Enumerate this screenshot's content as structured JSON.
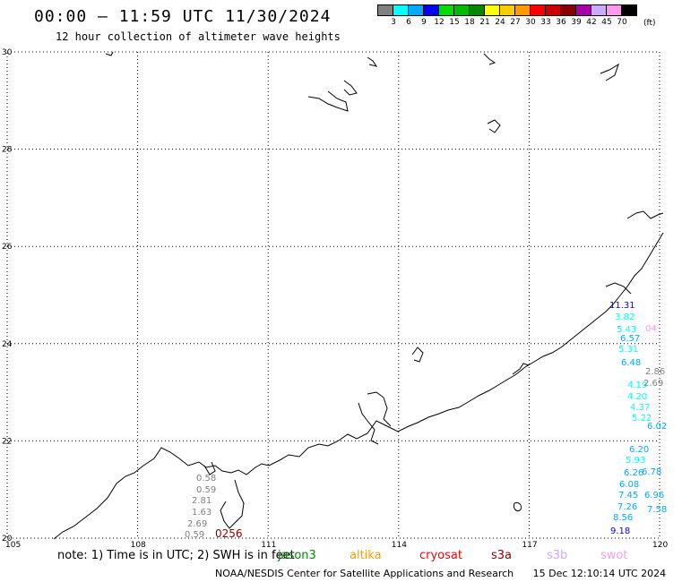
{
  "header": {
    "title": "00:00 – 11:59 UTC 11/30/2024",
    "subtitle": "12 hour collection of altimeter wave heights"
  },
  "legend": {
    "unit": "(ft)",
    "labels": [
      "3",
      "6",
      "9",
      "12",
      "15",
      "18",
      "21",
      "24",
      "27",
      "30",
      "33",
      "36",
      "39",
      "42",
      "45",
      "70"
    ],
    "colors": [
      "#808080",
      "#00ffff",
      "#00aaff",
      "#0000ff",
      "#00dd00",
      "#00bb00",
      "#008800",
      "#ffff00",
      "#ffcc00",
      "#ff9900",
      "#ff0000",
      "#cc0000",
      "#880000",
      "#aa00aa",
      "#ccaaff",
      "#ff99ee",
      "#000000"
    ]
  },
  "map": {
    "lat_labels": [
      "30",
      "28",
      "26",
      "24",
      "22",
      "20"
    ],
    "lon_labels": [
      "105",
      "108",
      "111",
      "114",
      "117",
      "120"
    ],
    "lon_range": [
      105,
      120
    ],
    "lat_range": [
      20,
      30
    ],
    "annotations": [
      {
        "text": "0.58",
        "color": "#808080"
      },
      {
        "text": "0.59",
        "color": "#808080"
      },
      {
        "text": "2.81",
        "color": "#808080"
      },
      {
        "text": "1.63",
        "color": "#808080"
      },
      {
        "text": "2.69",
        "color": "#808080"
      },
      {
        "text": "0.59",
        "color": "#808080"
      },
      {
        "text": "0256",
        "color": "#880000"
      },
      {
        "text": "11.31",
        "color": "#0000ff"
      },
      {
        "text": "3.82",
        "color": "#00ffff"
      },
      {
        "text": "5.43",
        "color": "#00ffff"
      },
      {
        "text": "6.57",
        "color": "#00aaff"
      },
      {
        "text": "5.31",
        "color": "#00ffff"
      },
      {
        "text": "6.48",
        "color": "#00aaff"
      },
      {
        "text": "4.19",
        "color": "#00ffff"
      },
      {
        "text": "4.20",
        "color": "#00ffff"
      },
      {
        "text": "4.37",
        "color": "#00ffff"
      },
      {
        "text": "5.22",
        "color": "#00ffff"
      },
      {
        "text": "6.20",
        "color": "#00aaff"
      },
      {
        "text": "5.93",
        "color": "#00ffff"
      },
      {
        "text": "6.26",
        "color": "#00aaff"
      },
      {
        "text": "6.08",
        "color": "#00aaff"
      },
      {
        "text": "7.45",
        "color": "#00aaff"
      },
      {
        "text": "7.26",
        "color": "#00aaff"
      },
      {
        "text": "8.56",
        "color": "#00aaff"
      },
      {
        "text": "9.18",
        "color": "#0000ff"
      },
      {
        "text": "2.86",
        "color": "#808080"
      },
      {
        "text": "2.69",
        "color": "#808080"
      },
      {
        "text": "6.02",
        "color": "#00aaff"
      },
      {
        "text": "6.78",
        "color": "#00aaff"
      },
      {
        "text": "6.96",
        "color": "#00aaff"
      },
      {
        "text": "7.58",
        "color": "#00aaff"
      },
      {
        "text": "04",
        "color": "#ff99ee"
      }
    ]
  },
  "footer_note": {
    "note": "note: 1) Time is in UTC; 2) SWH is in feet",
    "satellites": [
      {
        "name": "jason3",
        "color": "#008800"
      },
      {
        "name": "altika",
        "color": "#ff9900"
      },
      {
        "name": "cryosat",
        "color": "#ff0000"
      },
      {
        "name": "s3a",
        "color": "#880000"
      },
      {
        "name": "s3b",
        "color": "#ccaaff"
      },
      {
        "name": "swot",
        "color": "#ff99ee"
      }
    ]
  },
  "credits": {
    "agency": "NOAA/NESDIS Center for Satellite Applications and Research",
    "timestamp": "15 Dec 12:10:14 UTC 2024"
  }
}
